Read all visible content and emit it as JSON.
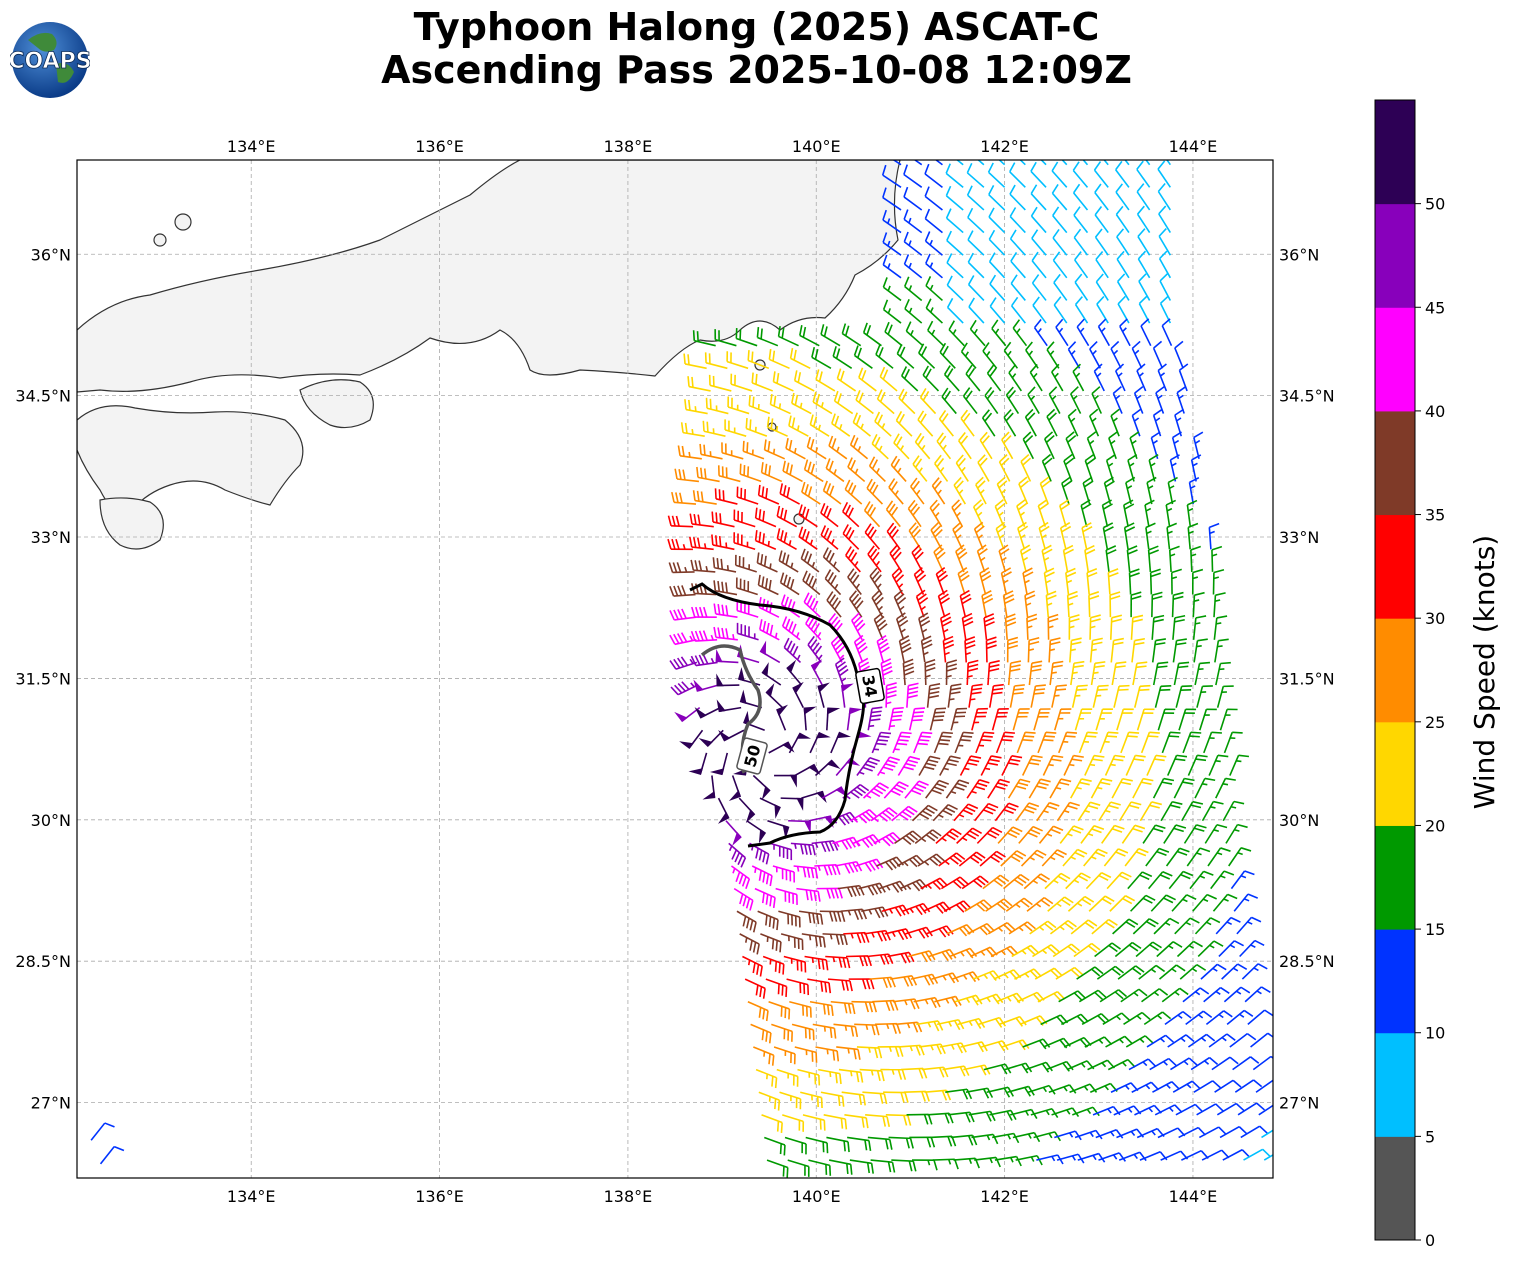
{
  "title": {
    "line1": "Typhoon Halong (2025) ASCAT-C",
    "line2": "Ascending Pass 2025-10-08 12:09Z"
  },
  "logo": {
    "text": "COAPS"
  },
  "map": {
    "lon_range": [
      132.15,
      144.85
    ],
    "lat_range": [
      26.2,
      37.0
    ],
    "lon_ticks": [
      134,
      136,
      138,
      140,
      142,
      144
    ],
    "lon_tick_labels": [
      "134°E",
      "136°E",
      "138°E",
      "140°E",
      "142°E",
      "144°E"
    ],
    "lat_ticks": [
      27,
      28.5,
      30,
      31.5,
      33,
      34.5,
      36
    ],
    "lat_tick_labels": [
      "27°N",
      "28.5°N",
      "30°N",
      "31.5°N",
      "33°N",
      "34.5°N",
      "36°N"
    ],
    "center": {
      "lon": 139.45,
      "lat": 30.75
    },
    "contours": [
      {
        "label": "34",
        "color": "#000000"
      },
      {
        "label": "50",
        "color": "#555555"
      }
    ]
  },
  "colorbar": {
    "label": "Wind Speed (knots)",
    "bounds": [
      0,
      5,
      10,
      15,
      20,
      25,
      30,
      35,
      40,
      45,
      50
    ],
    "tick_labels": [
      "0",
      "5",
      "10",
      "15",
      "20",
      "25",
      "30",
      "35",
      "40",
      "45",
      "50"
    ],
    "colors": [
      "#555555",
      "#00bfff",
      "#0033ff",
      "#009900",
      "#ffd700",
      "#ff8c00",
      "#ff0000",
      "#7f3a28",
      "#ff00ff",
      "#8800bb",
      "#2d0055"
    ]
  }
}
